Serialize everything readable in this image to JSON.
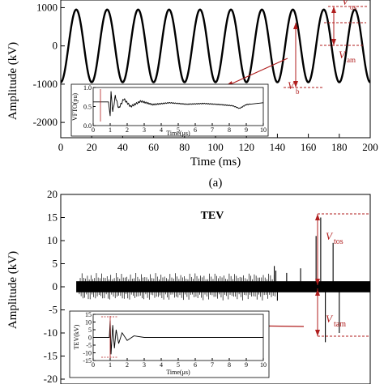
{
  "chart_data": [
    {
      "type": "line",
      "panel_label": "(a)",
      "xlabel": "Time (ms)",
      "ylabel": "Amplitude (kV)",
      "xlim": [
        0,
        200
      ],
      "ylim": [
        -2400,
        1200
      ],
      "x_ticks": [
        "0",
        "20",
        "40",
        "60",
        "80",
        "100",
        "120",
        "140",
        "160",
        "180",
        "200"
      ],
      "y_ticks": [
        "1000",
        "0",
        "-1000",
        "-2000"
      ],
      "series": [
        {
          "name": "",
          "shape": "sine",
          "amplitude_kV": 950,
          "frequency_Hz": 50,
          "x_start": 0,
          "x_end": 200
        }
      ],
      "annotations": {
        "v_os": "V",
        "v_os_sub": "os",
        "v_am": "V",
        "v_am_sub": "am",
        "v_b": "V",
        "v_b_sub": "b"
      },
      "inset": {
        "xlabel": "Time(μs)",
        "ylabel": "VFTO(pu)",
        "xlim": [
          0,
          10
        ],
        "ylim": [
          0,
          1
        ],
        "x_ticks": [
          "0",
          "1",
          "2",
          "3",
          "4",
          "5",
          "6",
          "7",
          "8",
          "9",
          "10"
        ],
        "y_ticks": [
          "1.0",
          "0.5",
          "0.0"
        ],
        "series": [
          {
            "name": "",
            "points": [
              [
                0,
                0.62
              ],
              [
                0.5,
                0.62
              ],
              [
                0.9,
                0.62
              ],
              [
                1.0,
                0.25
              ],
              [
                1.05,
                0.9
              ],
              [
                1.15,
                0.35
              ],
              [
                1.3,
                0.78
              ],
              [
                1.5,
                0.45
              ],
              [
                1.8,
                0.7
              ],
              [
                2.2,
                0.5
              ],
              [
                2.8,
                0.64
              ],
              [
                3.5,
                0.55
              ],
              [
                4.5,
                0.6
              ],
              [
                5.5,
                0.56
              ],
              [
                6.5,
                0.58
              ],
              [
                7.5,
                0.55
              ],
              [
                8.2,
                0.52
              ],
              [
                8.6,
                0.45
              ],
              [
                9.0,
                0.55
              ],
              [
                10,
                0.6
              ]
            ]
          }
        ]
      }
    },
    {
      "type": "line",
      "title": "TEV",
      "xlabel": "",
      "ylabel": "Amplitude (kV)",
      "xlim": [
        0,
        200
      ],
      "ylim": [
        -20,
        20
      ],
      "y_ticks": [
        "20",
        "15",
        "10",
        "5",
        "0",
        "-5",
        "-10",
        "-15",
        "-20"
      ],
      "series": [
        {
          "name": "",
          "shape": "noise",
          "baseline_kV": 0,
          "noise_band_kV": 1.2,
          "spikes": [
            [
              138,
              4.5
            ],
            [
              139,
              3.5
            ],
            [
              140,
              -3
            ],
            [
              146,
              3
            ],
            [
              155,
              4
            ],
            [
              165,
              11
            ],
            [
              168,
              15
            ],
            [
              171,
              -12
            ],
            [
              176,
              9.5
            ],
            [
              180,
              -10
            ]
          ]
        }
      ],
      "annotations": {
        "v_tos": "V",
        "v_tos_sub": "tos",
        "v_tam": "V",
        "v_tam_sub": "tam"
      },
      "inset": {
        "xlabel": "Time(μs)",
        "ylabel": "TEV(kV)",
        "xlim": [
          0,
          10
        ],
        "ylim": [
          -15,
          15
        ],
        "x_ticks": [
          "0",
          "1",
          "2",
          "3",
          "4",
          "5",
          "6",
          "7",
          "8",
          "9",
          "10"
        ],
        "y_ticks": [
          "15",
          "10",
          "5",
          "0",
          "-5",
          "-10",
          "-15"
        ],
        "series": [
          {
            "name": "",
            "points": [
              [
                0,
                0
              ],
              [
                0.95,
                0
              ],
              [
                1.0,
                11
              ],
              [
                1.05,
                -11
              ],
              [
                1.15,
                8
              ],
              [
                1.25,
                -7
              ],
              [
                1.35,
                5
              ],
              [
                1.5,
                -4
              ],
              [
                1.7,
                3
              ],
              [
                2.0,
                -2
              ],
              [
                2.4,
                1
              ],
              [
                3.0,
                0
              ],
              [
                10,
                0
              ]
            ]
          }
        ]
      }
    }
  ]
}
